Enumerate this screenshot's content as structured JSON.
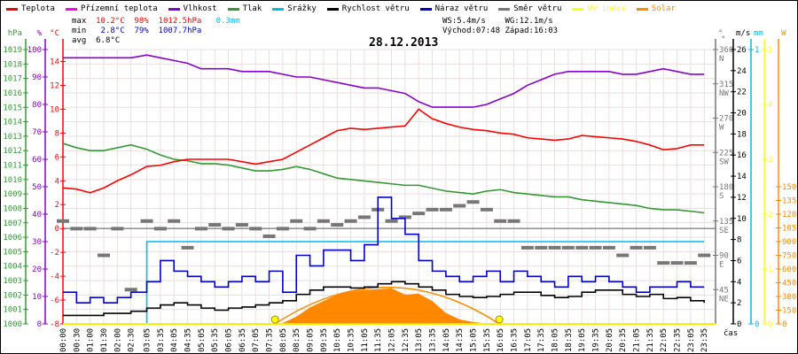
{
  "legend": [
    {
      "label": "Teplota",
      "color": "#ff0000"
    },
    {
      "label": "Přízemní teplota",
      "color": "#ff00ff"
    },
    {
      "label": "Vlhkost",
      "color": "#8800cc"
    },
    {
      "label": "Tlak",
      "color": "#339933"
    },
    {
      "label": "Srážky",
      "color": "#00bbee"
    },
    {
      "label": "Rychlost větru",
      "color": "#000000"
    },
    {
      "label": "Náraz větru",
      "color": "#0000cc"
    },
    {
      "label": "Směr větru",
      "color": "#777777"
    },
    {
      "label": "UV index",
      "color": "#ffff00"
    },
    {
      "label": "Solar",
      "color": "#ff8800"
    }
  ],
  "stats": {
    "max_label": "max",
    "max_temp": "10.2°C",
    "max_hum": "98%",
    "max_press": "1012.5hPa",
    "max_rain": "0.3mm",
    "min_label": "min",
    "min_temp": "2.8°C",
    "min_hum": "79%",
    "min_press": "1007.7hPa",
    "avg_label": "avg",
    "avg_temp": "6.8°C",
    "ws": "WS:5.4m/s",
    "wg": "WG:12.1m/s",
    "sunrise": "Východ:07:48",
    "sunset": "Západ:16:03"
  },
  "chart_data": {
    "type": "line",
    "title": "28.12.2013",
    "xlabel": "čas",
    "x": [
      "00:00",
      "00:30",
      "01:00",
      "01:30",
      "02:00",
      "02:30",
      "03:05",
      "03:35",
      "04:05",
      "04:35",
      "05:05",
      "05:35",
      "06:05",
      "06:35",
      "07:05",
      "07:35",
      "08:05",
      "08:35",
      "09:05",
      "09:35",
      "10:05",
      "10:35",
      "11:05",
      "11:35",
      "12:05",
      "12:35",
      "13:05",
      "13:35",
      "14:05",
      "14:35",
      "15:05",
      "15:35",
      "16:05",
      "16:35",
      "17:05",
      "17:35",
      "18:05",
      "18:35",
      "19:05",
      "19:35",
      "20:05",
      "20:35",
      "21:05",
      "21:35",
      "22:05",
      "22:35",
      "23:05",
      "23:35"
    ],
    "axes": {
      "pressure": {
        "unit": "hPa",
        "range": [
          1000,
          1019
        ],
        "color": "#339933"
      },
      "humidity": {
        "unit": "%",
        "range": [
          0,
          100
        ],
        "ticks": [
          0,
          10,
          20,
          30,
          40,
          50,
          60,
          70,
          80,
          90,
          100
        ],
        "color": "#8800cc"
      },
      "temperature": {
        "unit": "°C",
        "range": [
          -8,
          15
        ],
        "ticks": [
          -8,
          -6,
          -4,
          -2,
          0,
          2,
          4,
          6,
          8,
          10,
          12,
          14
        ],
        "color": "#ff0000"
      },
      "direction": {
        "unit": "°",
        "range": [
          0,
          360
        ],
        "ticks": [
          {
            "v": 360,
            "l": "N"
          },
          {
            "v": 315,
            "l": "NW"
          },
          {
            "v": 270,
            "l": "W"
          },
          {
            "v": 225,
            "l": "SW"
          },
          {
            "v": 180,
            "l": "S"
          },
          {
            "v": 135,
            "l": "SE"
          },
          {
            "v": 90,
            "l": "E"
          },
          {
            "v": 45,
            "l": "NE"
          }
        ],
        "color": "#777777"
      },
      "wind": {
        "unit": "m/s",
        "range": [
          0,
          26
        ],
        "ticks": [
          0,
          2,
          4,
          6,
          8,
          10,
          12,
          14,
          16,
          18,
          20,
          22,
          24,
          26
        ],
        "color": "#000000"
      },
      "rain": {
        "unit": "mm",
        "range": [
          0,
          1
        ],
        "ticks": [
          0,
          1
        ],
        "color": "#00bbee"
      },
      "uv": {
        "unit": "",
        "range": [
          0,
          5
        ],
        "ticks": [
          0,
          1,
          2,
          3,
          4,
          5
        ],
        "color": "#ffff00"
      },
      "solar": {
        "unit": "W",
        "range": [
          0,
          3000
        ],
        "ticks": [
          0,
          150,
          300,
          450,
          600,
          750,
          900,
          1050,
          1200,
          1350,
          1500
        ],
        "color": "#ff8800"
      }
    },
    "grid": true,
    "series": [
      {
        "name": "Teplota",
        "axis": "temperature",
        "values": [
          3.4,
          3.3,
          3.0,
          3.4,
          4.0,
          4.5,
          5.2,
          5.3,
          5.6,
          5.8,
          5.8,
          5.8,
          5.8,
          5.6,
          5.4,
          5.6,
          5.8,
          6.4,
          7.0,
          7.6,
          8.2,
          8.4,
          8.3,
          8.4,
          8.5,
          8.6,
          10.0,
          9.2,
          8.8,
          8.5,
          8.3,
          8.2,
          8.0,
          7.9,
          7.6,
          7.5,
          7.4,
          7.5,
          7.8,
          7.7,
          7.6,
          7.5,
          7.3,
          7.0,
          6.6,
          6.7,
          7.0,
          7.0
        ]
      },
      {
        "name": "Vlhkost",
        "axis": "humidity",
        "values": [
          97,
          97,
          97,
          97,
          97,
          97,
          98,
          97,
          96,
          95,
          93,
          93,
          93,
          92,
          92,
          92,
          91,
          90,
          90,
          89,
          88,
          87,
          86,
          86,
          85,
          84,
          81,
          79,
          79,
          79,
          79,
          80,
          82,
          84,
          87,
          89,
          91,
          92,
          92,
          92,
          92,
          91,
          91,
          92,
          93,
          92,
          91,
          91
        ]
      },
      {
        "name": "Tlak",
        "axis": "pressure",
        "values": [
          1012.5,
          1012.2,
          1012.0,
          1012.0,
          1012.2,
          1012.4,
          1012.1,
          1011.7,
          1011.4,
          1011.3,
          1011.1,
          1011.1,
          1011.0,
          1010.8,
          1010.6,
          1010.6,
          1010.7,
          1010.9,
          1010.7,
          1010.4,
          1010.1,
          1010.0,
          1009.9,
          1009.8,
          1009.7,
          1009.6,
          1009.6,
          1009.4,
          1009.2,
          1009.1,
          1009.0,
          1009.2,
          1009.3,
          1009.1,
          1009.0,
          1008.9,
          1008.8,
          1008.8,
          1008.6,
          1008.5,
          1008.4,
          1008.3,
          1008.2,
          1008.0,
          1007.9,
          1007.9,
          1007.8,
          1007.7
        ]
      },
      {
        "name": "Srážky",
        "axis": "rain",
        "values": [
          0,
          0,
          0,
          0,
          0,
          0,
          0.3,
          0.3,
          0.3,
          0.3,
          0.3,
          0.3,
          0.3,
          0.3,
          0.3,
          0.3,
          0.3,
          0.3,
          0.3,
          0.3,
          0.3,
          0.3,
          0.3,
          0.3,
          0.3,
          0.3,
          0.3,
          0.3,
          0.3,
          0.3,
          0.3,
          0.3,
          0.3,
          0.3,
          0.3,
          0.3,
          0.3,
          0.3,
          0.3,
          0.3,
          0.3,
          0.3,
          0.3,
          0.3,
          0.3,
          0.3,
          0.3,
          0.3
        ]
      },
      {
        "name": "Rychlost větru",
        "axis": "wind",
        "values": [
          0.8,
          0.8,
          0.8,
          1.0,
          1.0,
          1.2,
          1.5,
          1.8,
          2.0,
          1.8,
          1.5,
          1.3,
          1.5,
          1.6,
          1.8,
          2.0,
          2.2,
          2.8,
          3.2,
          3.5,
          3.5,
          3.4,
          3.5,
          3.8,
          4.0,
          3.8,
          3.5,
          3.2,
          2.8,
          2.6,
          2.5,
          2.6,
          2.8,
          3.0,
          3.0,
          2.7,
          2.5,
          2.6,
          3.0,
          3.2,
          3.2,
          2.8,
          2.6,
          2.8,
          2.4,
          2.5,
          2.2,
          2.0
        ]
      },
      {
        "name": "Náraz větru",
        "axis": "wind",
        "values": [
          3.0,
          2.0,
          2.5,
          2.0,
          2.5,
          3.0,
          4.0,
          6.0,
          5.0,
          4.5,
          4.0,
          3.5,
          4.0,
          4.5,
          4.0,
          5.0,
          3.0,
          6.5,
          5.5,
          7.0,
          7.0,
          6.0,
          7.5,
          12.0,
          10.0,
          8.5,
          6.0,
          5.0,
          4.5,
          4.0,
          4.5,
          5.0,
          4.0,
          5.0,
          4.5,
          4.0,
          3.5,
          4.5,
          4.0,
          4.5,
          4.0,
          3.5,
          3.0,
          3.5,
          3.5,
          4.0,
          3.5,
          3.5
        ]
      },
      {
        "name": "Směr větru",
        "axis": "direction",
        "values": [
          135,
          125,
          125,
          90,
          125,
          45,
          135,
          125,
          135,
          100,
          125,
          130,
          125,
          130,
          125,
          115,
          125,
          135,
          125,
          135,
          130,
          135,
          140,
          150,
          135,
          140,
          145,
          150,
          150,
          155,
          160,
          150,
          135,
          135,
          100,
          100,
          100,
          100,
          100,
          100,
          100,
          90,
          100,
          100,
          80,
          80,
          80,
          90
        ]
      },
      {
        "name": "UV index",
        "axis": "uv",
        "values": [
          0,
          0,
          0,
          0,
          0,
          0,
          0,
          0,
          0,
          0,
          0,
          0,
          0,
          0,
          0,
          0,
          0,
          0,
          0,
          0,
          0,
          0,
          0,
          0,
          0,
          0,
          0,
          0,
          0,
          0,
          0,
          0,
          0,
          0,
          0,
          0,
          0,
          0,
          0,
          0,
          0,
          0,
          0,
          0,
          0,
          0,
          0,
          0
        ]
      },
      {
        "name": "Solar",
        "axis": "solar",
        "values": [
          0,
          0,
          0,
          0,
          0,
          0,
          0,
          0,
          0,
          0,
          0,
          0,
          0,
          0,
          0,
          0,
          10,
          80,
          180,
          250,
          320,
          360,
          370,
          380,
          390,
          320,
          330,
          250,
          120,
          50,
          20,
          5,
          0,
          0,
          0,
          0,
          0,
          0,
          0,
          0,
          0,
          0,
          0,
          0,
          0,
          0,
          0,
          0
        ]
      }
    ]
  }
}
